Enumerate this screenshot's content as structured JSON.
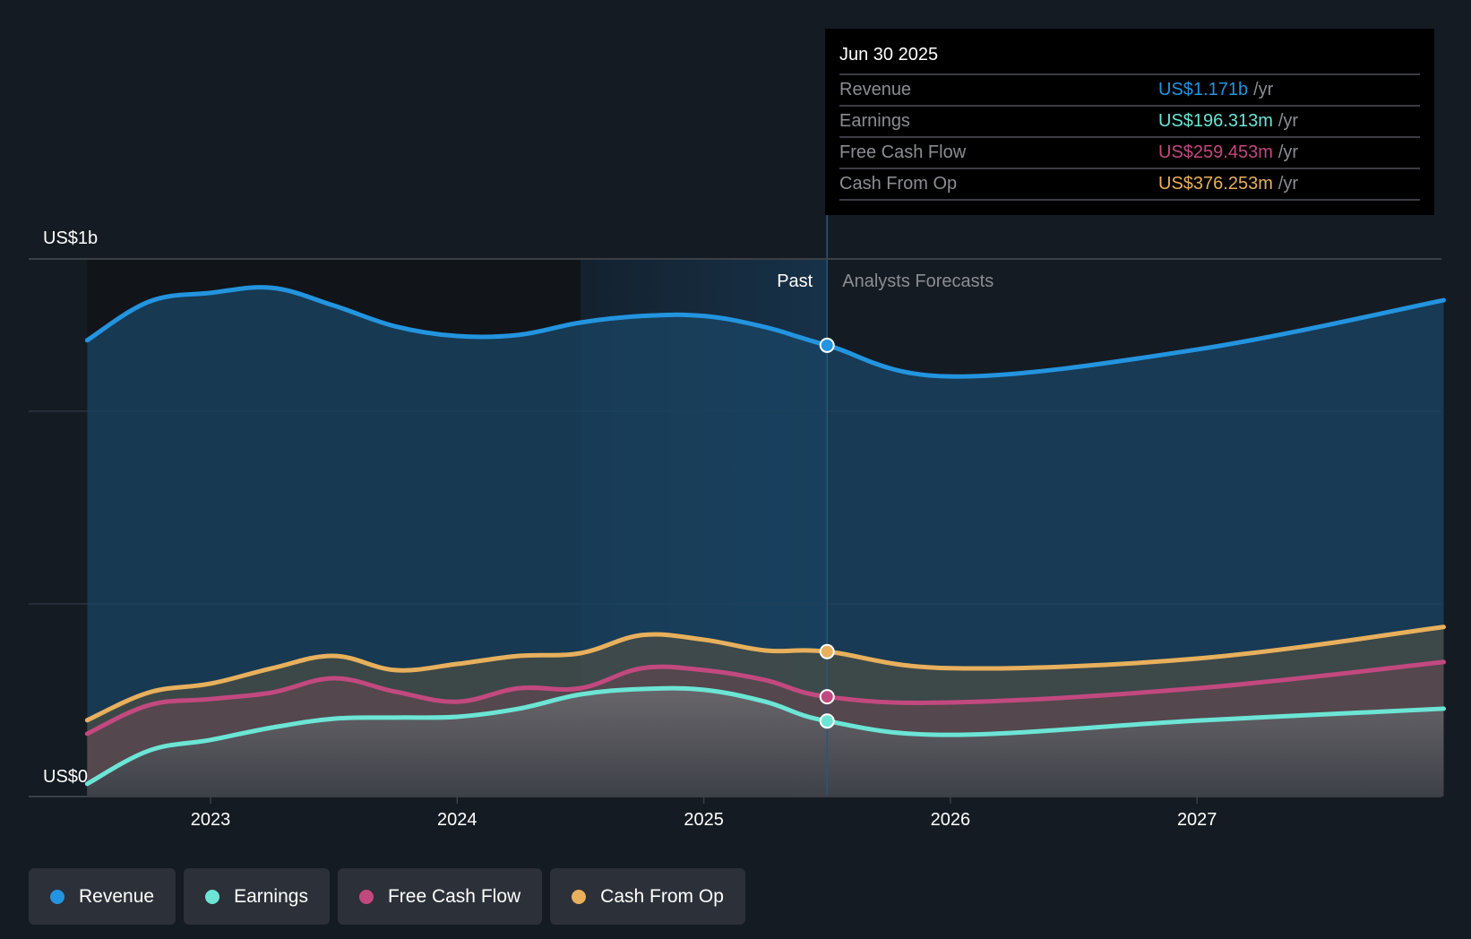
{
  "chart_data": {
    "type": "area",
    "title": "",
    "xlabel": "",
    "ylabel": "",
    "y_unit": "US$ billions",
    "ylim": [
      0,
      1.395
    ],
    "y_ticks": [
      {
        "value": 0,
        "label": "US$0"
      },
      {
        "value": 1.0,
        "label": "US$1b"
      }
    ],
    "y_gridlines": [
      0.5,
      1.0
    ],
    "xlim": [
      2022.5,
      2028.0
    ],
    "x_ticks": [
      {
        "value": 2023,
        "label": "2023"
      },
      {
        "value": 2024,
        "label": "2024"
      },
      {
        "value": 2025,
        "label": "2025"
      },
      {
        "value": 2026,
        "label": "2026"
      },
      {
        "value": 2027,
        "label": "2027"
      }
    ],
    "divider_x": 2025.5,
    "highlight_start_x": 2024.5,
    "region_labels": {
      "past": "Past",
      "forecast": "Analysts Forecasts"
    },
    "legend_position": "bottom-left",
    "grid": true,
    "series": [
      {
        "name": "Revenue",
        "color": "#2394df",
        "x": [
          2022.5,
          2022.75,
          2023.0,
          2023.25,
          2023.5,
          2023.75,
          2024.0,
          2024.25,
          2024.5,
          2024.75,
          2025.0,
          2025.25,
          2025.5,
          2026.0,
          2027.0,
          2028.0
        ],
        "values": [
          1.184,
          1.284,
          1.307,
          1.32,
          1.274,
          1.22,
          1.195,
          1.198,
          1.23,
          1.247,
          1.247,
          1.218,
          1.171,
          1.09,
          1.16,
          1.288
        ]
      },
      {
        "name": "Cash From Op",
        "color": "#e8b05c",
        "x": [
          2022.5,
          2022.75,
          2023.0,
          2023.25,
          2023.5,
          2023.75,
          2024.0,
          2024.25,
          2024.5,
          2024.75,
          2025.0,
          2025.25,
          2025.5,
          2026.0,
          2027.0,
          2028.0
        ],
        "values": [
          0.198,
          0.27,
          0.293,
          0.333,
          0.365,
          0.328,
          0.344,
          0.365,
          0.372,
          0.419,
          0.407,
          0.379,
          0.376,
          0.333,
          0.358,
          0.44
        ]
      },
      {
        "name": "Free Cash Flow",
        "color": "#c2497f",
        "x": [
          2022.5,
          2022.75,
          2023.0,
          2023.25,
          2023.5,
          2023.75,
          2024.0,
          2024.25,
          2024.5,
          2024.75,
          2025.0,
          2025.25,
          2025.5,
          2026.0,
          2027.0,
          2028.0
        ],
        "values": [
          0.163,
          0.237,
          0.253,
          0.27,
          0.307,
          0.272,
          0.246,
          0.281,
          0.281,
          0.333,
          0.328,
          0.302,
          0.259,
          0.244,
          0.281,
          0.349
        ]
      },
      {
        "name": "Earnings",
        "color": "#6ce5d5",
        "x": [
          2022.5,
          2022.75,
          2023.0,
          2023.25,
          2023.5,
          2023.75,
          2024.0,
          2024.25,
          2024.5,
          2024.75,
          2025.0,
          2025.25,
          2025.5,
          2026.0,
          2027.0,
          2028.0
        ],
        "values": [
          0.033,
          0.119,
          0.147,
          0.179,
          0.202,
          0.205,
          0.207,
          0.228,
          0.265,
          0.279,
          0.277,
          0.246,
          0.196,
          0.16,
          0.197,
          0.228
        ]
      }
    ]
  },
  "tooltip": {
    "date": "Jun 30 2025",
    "rows": [
      {
        "label": "Revenue",
        "value": "US$1.171b",
        "unit": "/yr",
        "color": "#2394df"
      },
      {
        "label": "Earnings",
        "value": "US$196.313m",
        "unit": "/yr",
        "color": "#6ce5d5"
      },
      {
        "label": "Free Cash Flow",
        "value": "US$259.453m",
        "unit": "/yr",
        "color": "#c2497f"
      },
      {
        "label": "Cash From Op",
        "value": "US$376.253m",
        "unit": "/yr",
        "color": "#e8b05c"
      }
    ]
  },
  "legend": [
    {
      "label": "Revenue",
      "color": "#2394df"
    },
    {
      "label": "Earnings",
      "color": "#6ce5d5"
    },
    {
      "label": "Free Cash Flow",
      "color": "#c2497f"
    },
    {
      "label": "Cash From Op",
      "color": "#e8b05c"
    }
  ]
}
